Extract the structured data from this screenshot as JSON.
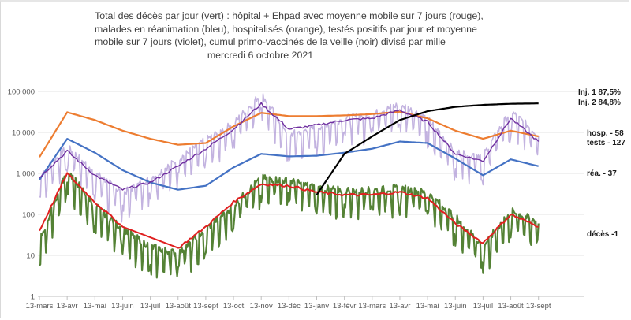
{
  "title_lines": [
    "Total des décès par jour (vert) : hôpital + Ehpad avec moyenne mobile sur 7 jours (rouge),",
    "malades en réanimation (bleu), hospitalisés (orange), testés positifs par jour et moyenne",
    "mobile sur 7 jours (violet), cumul primo-vaccinés de la veille (noir) divisé par mille",
    "mercredi 6 octobre 2021"
  ],
  "end_labels": {
    "inj1": "Inj. 1  87,5%",
    "inj2": "Inj. 2  84,8%",
    "hosp": "hosp. - 58",
    "tests": "tests - 127",
    "rea": "réa. - 37",
    "deces": "décès -1"
  },
  "chart_data": {
    "type": "line",
    "title": "Total des décès par jour (vert) : hôpital + Ehpad avec moyenne mobile sur 7 jours (rouge), malades en réanimation (bleu), hospitalisés (orange), testés positifs par jour et moyenne mobile sur 7 jours (violet), cumul primo-vaccinés de la veille (noir) divisé par mille — mercredi 6 octobre 2021",
    "xlabel": "",
    "ylabel": "",
    "yscale": "log",
    "ylim": [
      1,
      100000
    ],
    "y_ticks": [
      "1",
      "10",
      "100",
      "1 000",
      "10 000",
      "100 000"
    ],
    "grid": true,
    "legend": "inline end labels at right",
    "x": [
      "13-mars",
      "13-avr",
      "13-mai",
      "13-juin",
      "13-juil",
      "13-août",
      "13-sept",
      "13-oct",
      "13-nov",
      "13-déc",
      "13-janv",
      "13-févr",
      "13-mars",
      "13-avr",
      "13-mai",
      "13-juin",
      "13-juil",
      "13-août",
      "13-sept"
    ],
    "series": [
      {
        "name": "hospitalisés (orange)",
        "color": "#ED7D31",
        "values": [
          2500,
          31000,
          20000,
          11000,
          7000,
          5000,
          5500,
          14000,
          30000,
          25000,
          25000,
          26000,
          28000,
          32000,
          22000,
          11000,
          7000,
          11000,
          8000
        ]
      },
      {
        "name": "réanimation (bleu)",
        "color": "#4472C4",
        "values": [
          700,
          7000,
          3200,
          1200,
          600,
          400,
          500,
          1400,
          3000,
          2600,
          2700,
          3200,
          4000,
          6000,
          5500,
          2300,
          900,
          2200,
          1500
        ]
      },
      {
        "name": "testés positifs moyenne 7 j (violet)",
        "color": "#7030A0",
        "values": [
          800,
          3500,
          900,
          400,
          600,
          1500,
          4000,
          12000,
          50000,
          12000,
          15000,
          20000,
          22000,
          35000,
          18000,
          3000,
          2000,
          22000,
          6000
        ]
      },
      {
        "name": "testés positifs par jour (violet clair)",
        "color": "#B4A0D8",
        "values": [
          800,
          4000,
          1000,
          300,
          700,
          2000,
          6000,
          15000,
          80000,
          8000,
          12000,
          20000,
          25000,
          45000,
          20000,
          3000,
          2500,
          30000,
          8000
        ]
      },
      {
        "name": "décès par jour (vert)",
        "color": "#548235",
        "values": [
          20,
          1100,
          150,
          40,
          15,
          10,
          40,
          150,
          700,
          600,
          400,
          350,
          350,
          400,
          300,
          80,
          15,
          110,
          60
        ]
      },
      {
        "name": "décès moyenne 7 j (rouge)",
        "color": "#E02020",
        "values": [
          40,
          1000,
          200,
          50,
          null,
          15,
          50,
          200,
          550,
          500,
          350,
          300,
          300,
          350,
          250,
          60,
          20,
          100,
          50
        ]
      },
      {
        "name": "cumul primo-vaccinés / 1000 (noir)",
        "color": "#000000",
        "values": [
          null,
          null,
          null,
          null,
          null,
          null,
          null,
          null,
          null,
          null,
          300,
          3000,
          8000,
          20000,
          33000,
          42000,
          47000,
          50000,
          51000
        ]
      }
    ],
    "annotations": [
      "Inj. 1 87,5%",
      "Inj. 2 84,8%",
      "hosp. - 58",
      "tests - 127",
      "réa. - 37",
      "décès -1"
    ]
  }
}
